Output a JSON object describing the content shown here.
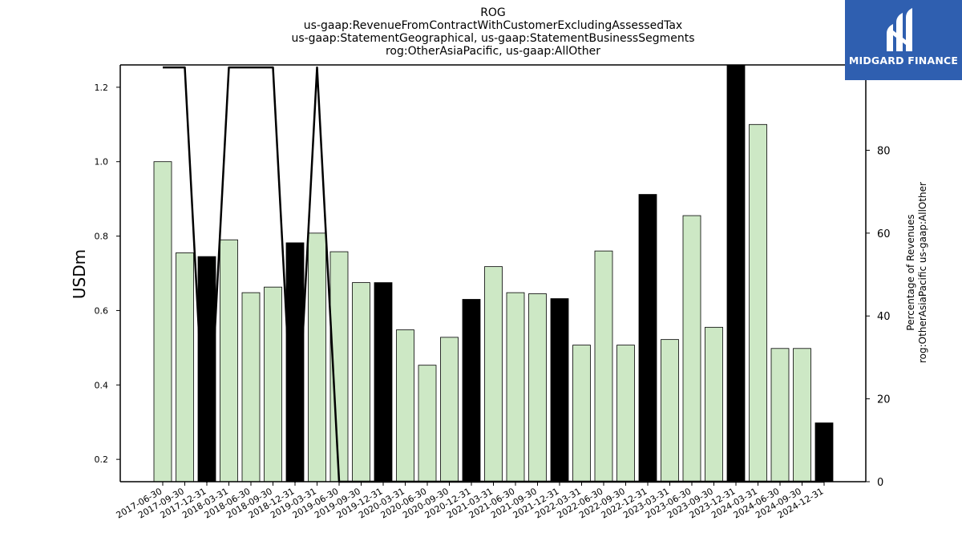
{
  "chart_data": {
    "type": "bar",
    "title_lines": [
      "ROG",
      "us-gaap:RevenueFromContractWithCustomerExcludingAssessedTax",
      "us-gaap:StatementGeographical, us-gaap:StatementBusinessSegments",
      "rog:OtherAsiaPacific, us-gaap:AllOther"
    ],
    "ylabel": "USDm",
    "y2label_lines": [
      "Percentage of Revenues",
      "rog:OtherAsiaPacific us-gaap:AllOther"
    ],
    "ylim": [
      0.14,
      1.26
    ],
    "y_ticks": [
      "0.2",
      "0.4",
      "0.6",
      "0.8",
      "1.0",
      "1.2"
    ],
    "y2lim": [
      0,
      100.6
    ],
    "y2_ticks": [
      "0",
      "20",
      "40",
      "60",
      "80",
      "100"
    ],
    "categories": [
      "2017-06-30",
      "2017-09-30",
      "2017-12-31",
      "2018-03-31",
      "2018-06-30",
      "2018-09-30",
      "2018-12-31",
      "2019-03-31",
      "2019-06-30",
      "2019-09-30",
      "2019-12-31",
      "2020-03-31",
      "2020-06-30",
      "2020-09-30",
      "2020-12-31",
      "2021-03-31",
      "2021-06-30",
      "2021-09-30",
      "2021-12-31",
      "2022-03-31",
      "2022-06-30",
      "2022-09-30",
      "2022-12-31",
      "2023-03-31",
      "2023-06-30",
      "2023-09-30",
      "2023-12-31",
      "2024-03-31",
      "2024-06-30",
      "2024-09-30",
      "2024-12-31"
    ],
    "series": [
      {
        "kind": "bar",
        "values": [
          1.0,
          0.755,
          0.745,
          0.79,
          0.648,
          0.663,
          0.782,
          0.808,
          0.758,
          0.675,
          0.675,
          0.548,
          0.453,
          0.528,
          0.63,
          0.718,
          0.648,
          0.645,
          0.632,
          0.507,
          0.76,
          0.507,
          0.912,
          0.522,
          0.855,
          0.555,
          1.26,
          1.1,
          0.498,
          0.498,
          0.298
        ],
        "highlight": [
          false,
          false,
          true,
          false,
          false,
          false,
          true,
          false,
          false,
          false,
          true,
          false,
          false,
          false,
          true,
          false,
          false,
          false,
          true,
          false,
          false,
          false,
          true,
          false,
          false,
          false,
          true,
          false,
          false,
          false,
          true
        ]
      },
      {
        "kind": "line",
        "axis": "right",
        "values": [
          100,
          100,
          0,
          100,
          100,
          100,
          0,
          100,
          0,
          0,
          0,
          0,
          0,
          0,
          0,
          0,
          0,
          0,
          0,
          0,
          0,
          0,
          0,
          0,
          0,
          0,
          0,
          0,
          0,
          0,
          0
        ]
      }
    ],
    "colors": {
      "bar": "#cde8c5",
      "bar_highlight": "#000000",
      "line": "#000000"
    }
  },
  "logo": {
    "text": "MIDGARD FINANCE",
    "bg": "#2f5fb0"
  }
}
